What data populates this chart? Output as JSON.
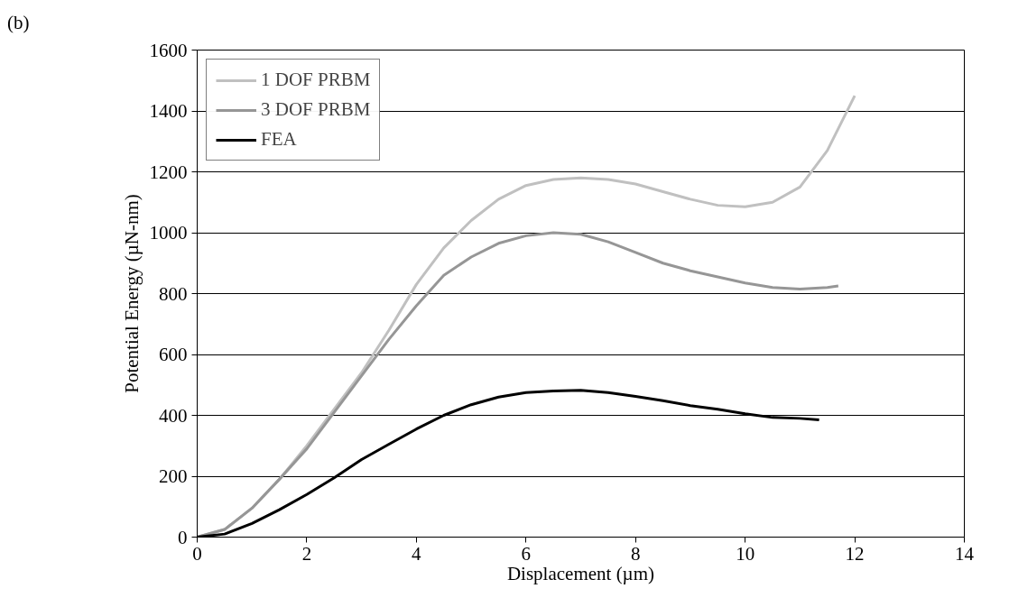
{
  "chart_data": {
    "type": "line",
    "xlabel": "Displacement (µm)",
    "ylabel": "Potential Energy (µN-nm)",
    "annotations": [
      "(b)"
    ],
    "xlim": [
      0,
      14
    ],
    "ylim": [
      0,
      1600
    ],
    "xticks": [
      0,
      2,
      4,
      6,
      8,
      10,
      12,
      14
    ],
    "yticks": [
      0,
      200,
      400,
      600,
      800,
      1000,
      1200,
      1400,
      1600
    ],
    "grid": "y",
    "legend": "top left",
    "marker": "none",
    "line_style": "solid",
    "series": [
      {
        "name": "1 DOF PRBM",
        "color": "#c0c0c0",
        "x": [
          0,
          0.5,
          1,
          1.5,
          2,
          2.5,
          3,
          3.5,
          4,
          4.5,
          5,
          5.5,
          6,
          6.5,
          7,
          7.5,
          8,
          8.5,
          9,
          9.5,
          10,
          10.5,
          11,
          11.5,
          12
        ],
        "values": [
          0,
          25,
          95,
          190,
          300,
          420,
          540,
          680,
          830,
          950,
          1040,
          1110,
          1155,
          1175,
          1180,
          1175,
          1160,
          1135,
          1110,
          1090,
          1085,
          1100,
          1150,
          1270,
          1450
        ]
      },
      {
        "name": "3 DOF PRBM",
        "color": "#969696",
        "x": [
          0,
          0.5,
          1,
          1.5,
          2,
          2.5,
          3,
          3.5,
          4,
          4.5,
          5,
          5.5,
          6,
          6.5,
          7,
          7.5,
          8,
          8.5,
          9,
          9.5,
          10,
          10.5,
          11,
          11.5,
          11.7
        ],
        "values": [
          0,
          25,
          95,
          190,
          290,
          410,
          530,
          650,
          760,
          860,
          920,
          965,
          990,
          1000,
          995,
          970,
          935,
          900,
          875,
          855,
          835,
          820,
          815,
          820,
          825
        ]
      },
      {
        "name": "FEA",
        "color": "#000000",
        "x": [
          0,
          0.5,
          1,
          1.5,
          2,
          2.5,
          3,
          3.5,
          4,
          4.5,
          5,
          5.5,
          6,
          6.5,
          7,
          7.5,
          8,
          8.5,
          9,
          9.5,
          10,
          10.5,
          11,
          11.35
        ],
        "values": [
          0,
          10,
          45,
          90,
          140,
          195,
          255,
          305,
          355,
          400,
          435,
          460,
          475,
          480,
          482,
          475,
          462,
          448,
          432,
          420,
          405,
          393,
          390,
          385
        ]
      }
    ]
  }
}
